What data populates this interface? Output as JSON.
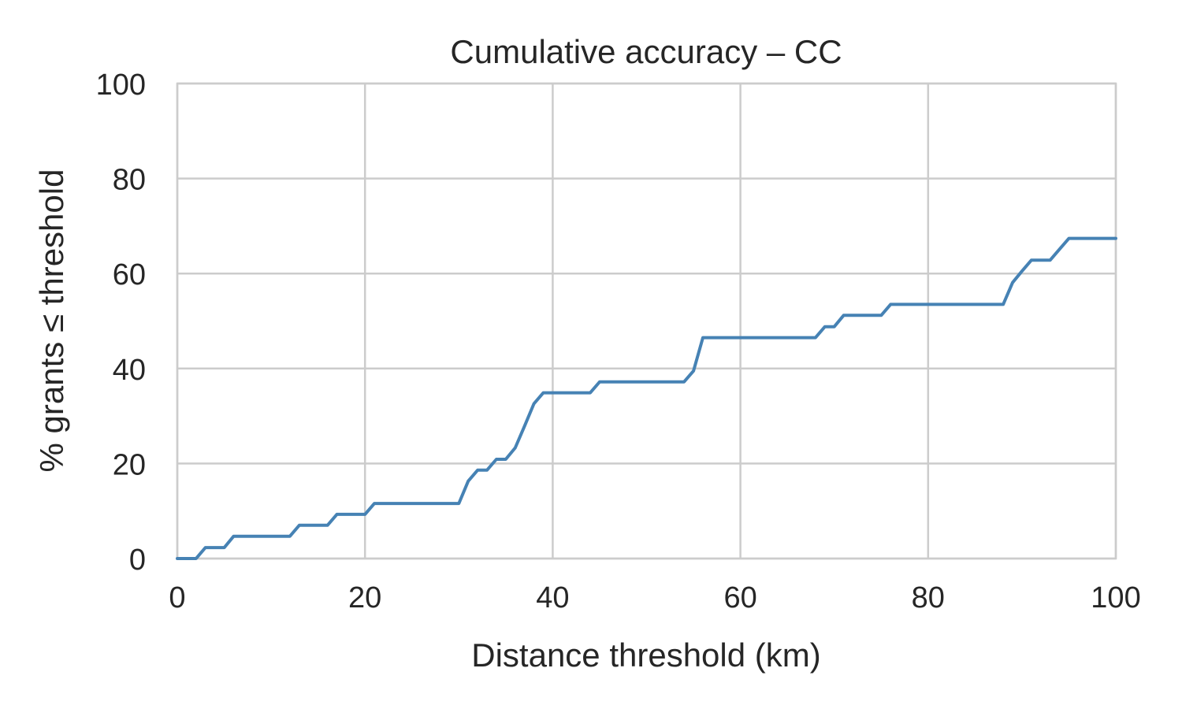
{
  "chart_data": {
    "type": "line",
    "title": "Cumulative accuracy – CC",
    "xlabel": "Distance threshold (km)",
    "ylabel": "% grants ≤ threshold",
    "xlim": [
      0,
      100
    ],
    "ylim": [
      0,
      100
    ],
    "xticks": [
      0,
      20,
      40,
      60,
      80,
      100
    ],
    "yticks": [
      0,
      20,
      40,
      60,
      80,
      100
    ],
    "xtick_labels": [
      "0",
      "20",
      "40",
      "60",
      "80",
      "100"
    ],
    "ytick_labels": [
      "0",
      "20",
      "40",
      "60",
      "80",
      "100"
    ],
    "grid": true,
    "series": [
      {
        "color": "#4682b4",
        "x": [
          0,
          2,
          3,
          5,
          6,
          12,
          13,
          16,
          17,
          20,
          21,
          30,
          31,
          32,
          33,
          34,
          35,
          36,
          37,
          38,
          39,
          44,
          45,
          54,
          55,
          56,
          68,
          69,
          70,
          71,
          75,
          76,
          88,
          89,
          90,
          91,
          93,
          94,
          95,
          100
        ],
        "y": [
          0,
          0,
          2.3,
          2.3,
          4.7,
          4.7,
          7.0,
          7.0,
          9.3,
          9.3,
          11.6,
          11.6,
          16.3,
          18.6,
          18.6,
          20.9,
          20.9,
          23.3,
          27.9,
          32.6,
          34.9,
          34.9,
          37.2,
          37.2,
          39.5,
          46.5,
          46.5,
          48.8,
          48.8,
          51.2,
          51.2,
          53.5,
          53.5,
          58.1,
          60.5,
          62.8,
          62.8,
          65.1,
          67.4,
          67.4
        ]
      }
    ]
  }
}
